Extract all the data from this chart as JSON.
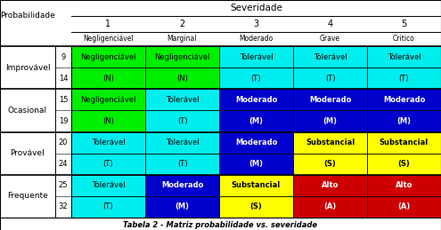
{
  "title": "Tabela 2 - Matriz probabilidade vs. severidade",
  "col_numbers": [
    "1",
    "2",
    "3",
    "4",
    "5"
  ],
  "col_labels": [
    "Negligenciável",
    "Marginal",
    "Moderado",
    "Grave",
    "Critico"
  ],
  "row_groups": [
    {
      "label": "Improvável",
      "num_top": "9",
      "num_bot": "14",
      "top": [
        "Negligenciável",
        "Negligenciável",
        "Tolerável",
        "Tolerável",
        "Tolerável"
      ],
      "bot": [
        "(N)",
        "(N)",
        "(T)",
        "(T)",
        "(T)"
      ],
      "codes": [
        "N",
        "N",
        "T",
        "T",
        "T"
      ]
    },
    {
      "label": "Ocasional",
      "num_top": "15",
      "num_bot": "19",
      "top": [
        "Negligenciável",
        "Tolerável",
        "Moderado",
        "Moderado",
        "Moderado"
      ],
      "bot": [
        "(N)",
        "(T)",
        "(M)",
        "(M)",
        "(M)"
      ],
      "codes": [
        "N",
        "T",
        "M",
        "M",
        "M"
      ]
    },
    {
      "label": "Provável",
      "num_top": "20",
      "num_bot": "24",
      "top": [
        "Tolerável",
        "Tolerável",
        "Moderado",
        "Substancial",
        "Substancial"
      ],
      "bot": [
        "(T)",
        "(T)",
        "(M)",
        "(S)",
        "(S)"
      ],
      "codes": [
        "T",
        "T",
        "M",
        "S",
        "S"
      ]
    },
    {
      "label": "Frequente",
      "num_top": "25",
      "num_bot": "32",
      "top": [
        "Tolerável",
        "Moderado",
        "Substancial",
        "Alto",
        "Alto"
      ],
      "bot": [
        "(T)",
        "(M)",
        "(S)",
        "(A)",
        "(A)"
      ],
      "codes": [
        "T",
        "M",
        "S",
        "A",
        "A"
      ]
    }
  ],
  "cell_colors": {
    "N": "#00ee00",
    "T": "#00eeee",
    "M": "#0000cc",
    "S": "#ffff00",
    "A": "#cc0000"
  },
  "text_colors": {
    "N": "#000000",
    "T": "#000000",
    "M": "#ffffff",
    "S": "#000000",
    "A": "#ffffff"
  }
}
